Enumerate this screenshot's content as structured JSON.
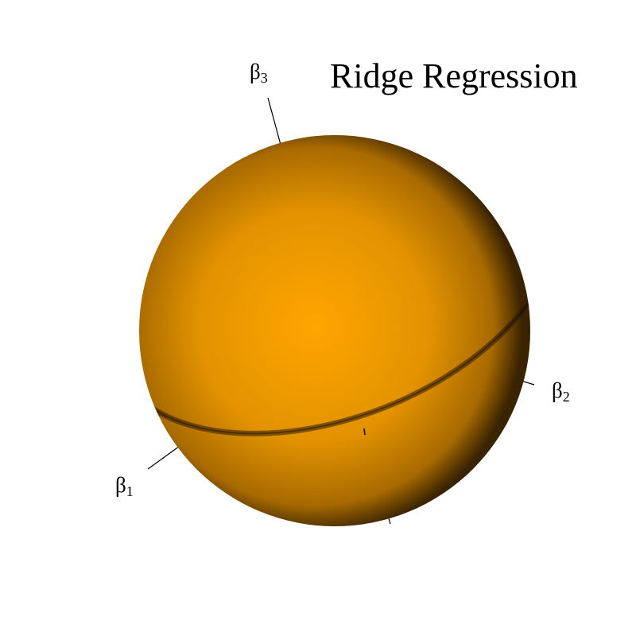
{
  "title": "Ridge Regression",
  "sphere": {
    "color": "#FFA500",
    "shade_color": "#3a2400"
  },
  "axes": [
    {
      "name": "β",
      "sub": "1"
    },
    {
      "name": "β",
      "sub": "2"
    },
    {
      "name": "β",
      "sub": "3"
    }
  ]
}
